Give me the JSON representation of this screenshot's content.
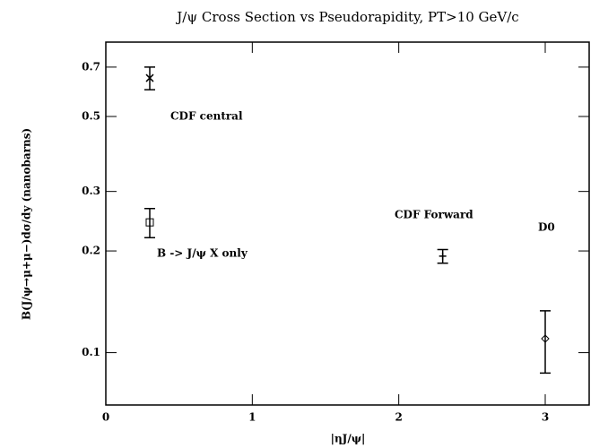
{
  "chart_data": {
    "type": "scatter",
    "title": "J/ψ Cross Section vs Pseudorapidity, PT>10 GeV/c",
    "x_label": "|ηJ/ψ|",
    "y_label": "B(J/ψ→μ+μ−)dσ/dy (nanobarns)",
    "log_y": true,
    "xlim": [
      0,
      3.3
    ],
    "xticks": [
      0,
      1,
      2,
      3
    ],
    "ylim": [
      0.07,
      0.83
    ],
    "yticks": [
      0.1,
      0.2,
      0.3,
      0.5,
      0.7
    ],
    "series": [
      {
        "name": "CDF central",
        "color": "#000000",
        "marker": "x",
        "x": [
          0.3
        ],
        "values": [
          0.65
        ],
        "errors": [
          0.05
        ]
      },
      {
        "name": "B -> J/ψ X only",
        "color": "#000000",
        "marker": "square",
        "x": [
          0.3
        ],
        "values": [
          0.243
        ],
        "errors": [
          0.024
        ]
      },
      {
        "name": "CDF Forward",
        "color": "#000000",
        "marker": "plus",
        "x": [
          2.3
        ],
        "values": [
          0.193
        ],
        "errors": [
          0.009
        ]
      },
      {
        "name": "D0",
        "color": "#000000",
        "marker": "diamond",
        "x": [
          3.0
        ],
        "values": [
          0.11
        ],
        "errors": [
          0.023
        ]
      }
    ]
  }
}
